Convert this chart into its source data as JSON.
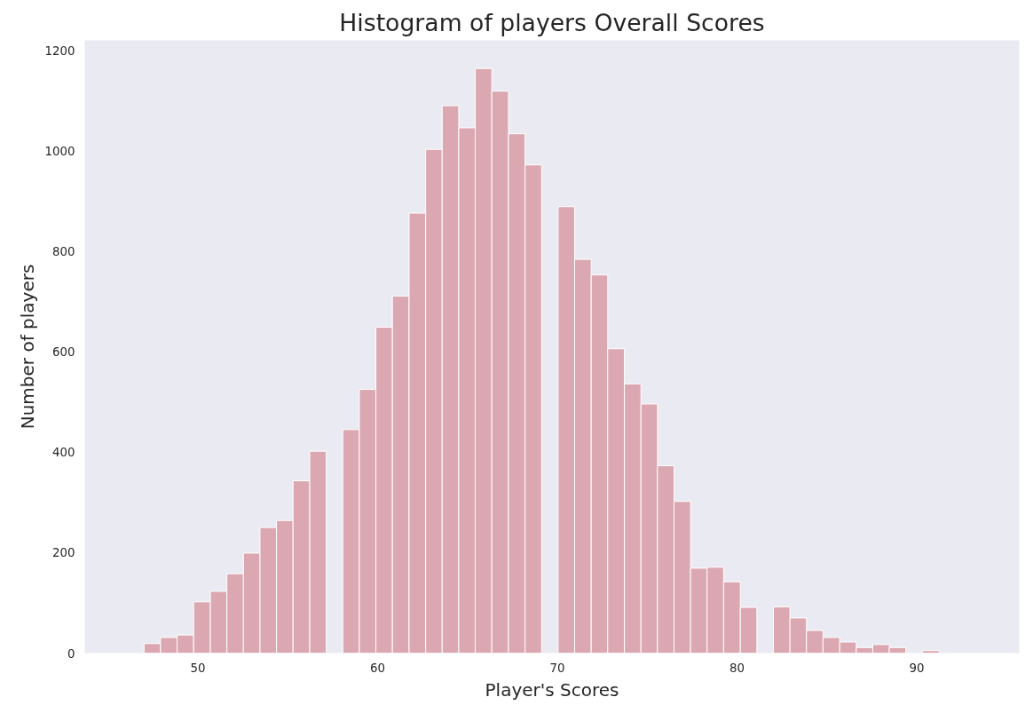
{
  "chart_data": {
    "type": "histogram",
    "title": "Histogram of players Overall Scores",
    "xlabel": "Player's Scores",
    "ylabel": "Number of players",
    "bins": [
      47.0,
      47.92,
      48.84,
      49.76,
      50.69,
      51.61,
      52.53,
      53.45,
      54.37,
      55.29,
      56.22,
      57.14,
      58.06,
      58.98,
      59.9,
      60.82,
      61.75,
      62.67,
      63.59,
      64.51,
      65.43,
      66.35,
      67.28,
      68.2,
      69.12,
      70.04,
      70.96,
      71.88,
      72.8,
      73.73,
      74.65,
      75.57,
      76.49,
      77.41,
      78.33,
      79.25,
      80.18,
      81.1,
      82.02,
      82.94,
      83.86,
      84.78,
      85.71,
      86.63,
      87.55,
      88.47,
      89.39,
      90.31,
      91.24
    ],
    "values": [
      19,
      31,
      36,
      102,
      123,
      158,
      199,
      250,
      264,
      343,
      402,
      0,
      445,
      525,
      649,
      711,
      876,
      1003,
      1090,
      1046,
      1164,
      1119,
      1034,
      972,
      0,
      889,
      784,
      753,
      606,
      536,
      496,
      373,
      302,
      169,
      171,
      142,
      91,
      0,
      92,
      70,
      45,
      31,
      22,
      11,
      17,
      11,
      0,
      5
    ],
    "color": "#dba8b1",
    "xlim": [
      43.7,
      95.7
    ],
    "ylim": [
      0,
      1220
    ],
    "xticks": [
      50,
      60,
      70,
      80,
      90
    ],
    "yticks": [
      0,
      200,
      400,
      600,
      800,
      1000,
      1200
    ],
    "grid": false
  }
}
